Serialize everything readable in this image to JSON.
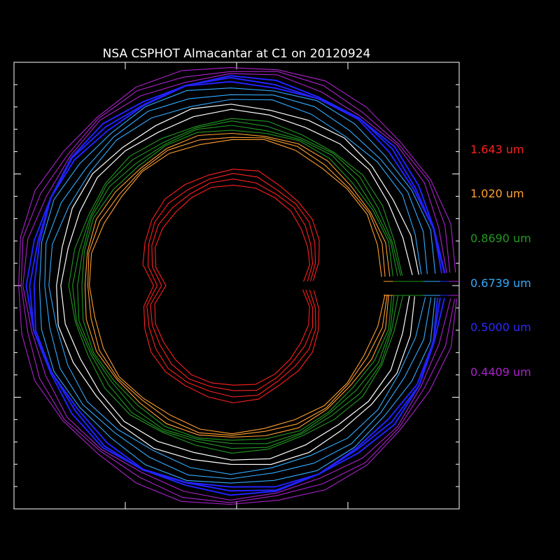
{
  "chart_data": {
    "type": "line",
    "title": "NSA CSPHOT Almacantar at C1 on 20120924",
    "plot_style": "polar rings",
    "background": "#000000",
    "frame_color": "#ffffff",
    "grid": false,
    "legend_position": "right",
    "series": [
      {
        "name": "1.643 um",
        "color": "#ff2020",
        "values": [
          0.92,
          0.88,
          0.84,
          0.8
        ]
      },
      {
        "name": "1.020 um",
        "color": "#ffa030",
        "values": [
          1.46,
          1.43,
          1.4
        ]
      },
      {
        "name": "0.8690 um",
        "color": "#229922",
        "values": [
          1.58,
          1.55,
          1.52,
          1.49
        ]
      },
      {
        "name": "0.6739 um",
        "color": "#33aaff",
        "values": [
          1.9,
          1.84,
          1.78
        ]
      },
      {
        "name": "0.5000 um",
        "color": "#2222ff",
        "values": [
          1.98,
          1.96,
          1.94
        ]
      },
      {
        "name": "0.4409 um",
        "color": "#aa22cc",
        "values": [
          2.1,
          2.06,
          2.02
        ]
      }
    ],
    "white_rings": [
      1.66,
      1.72
    ]
  }
}
